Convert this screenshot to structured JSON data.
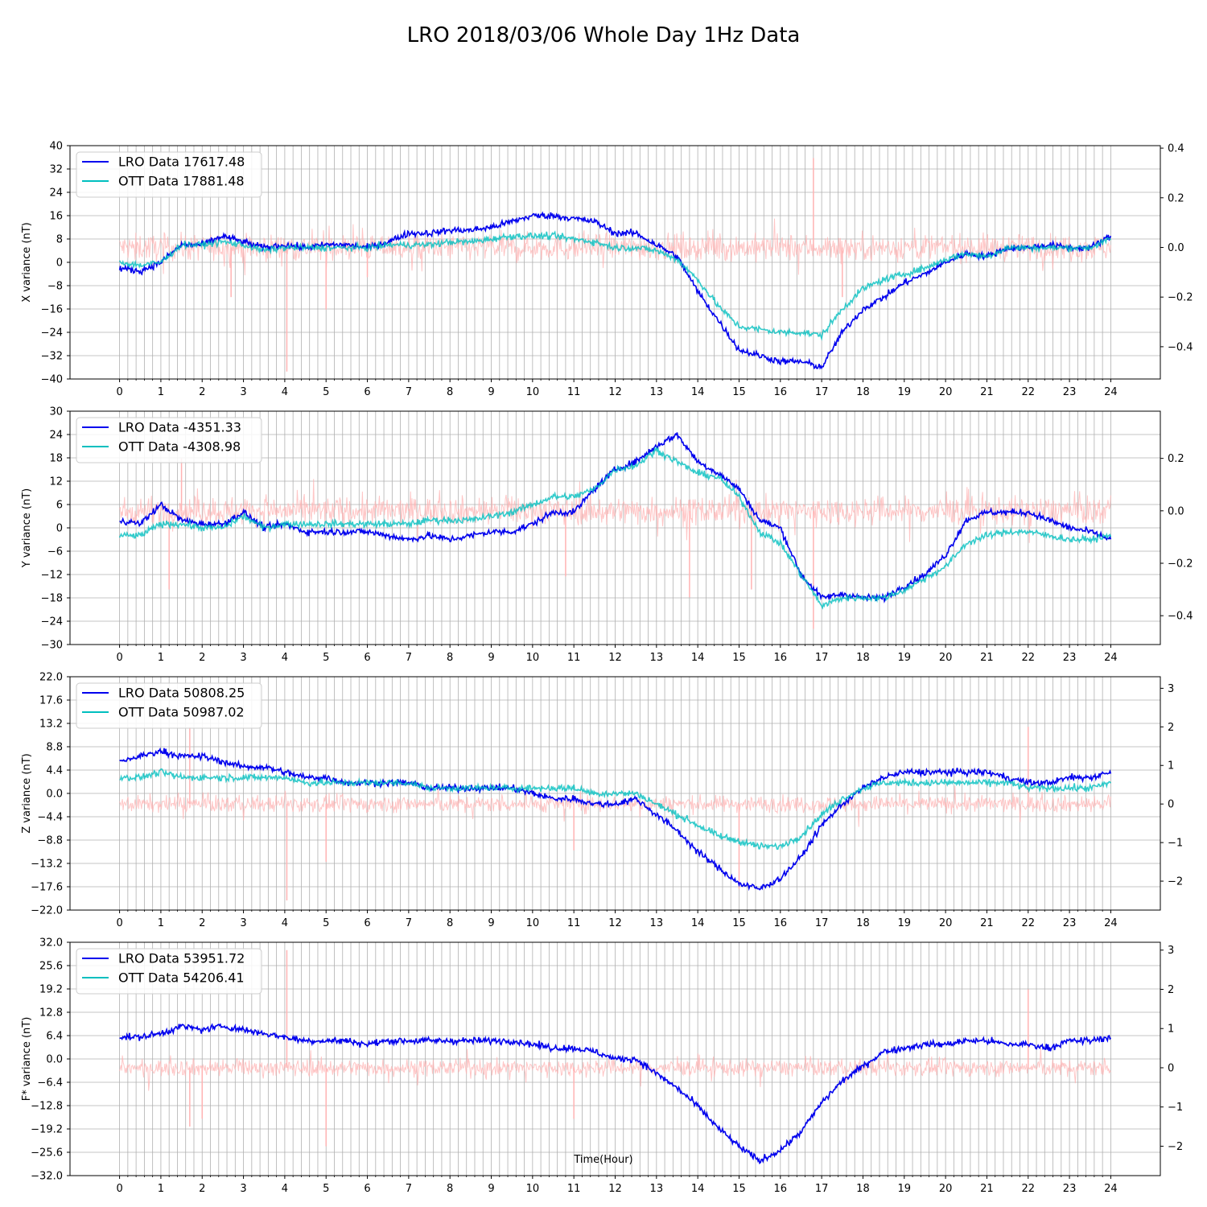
{
  "figure": {
    "title": "LRO 2018/03/06 Whole Day 1Hz Data"
  },
  "colors": {
    "lro": "#0000ee",
    "ott": "#00bfbf",
    "diff": "#ffb3b3",
    "grid": "#b0b0b0"
  },
  "chart_data": [
    {
      "type": "line",
      "ylabel": "X variance (nT)",
      "ylim": [
        -40,
        40
      ],
      "yticks": [
        -40,
        -32,
        -24,
        -16,
        -8,
        0,
        8,
        16,
        24,
        32,
        40
      ],
      "y2lim": [
        -0.53,
        0.41
      ],
      "y2ticks": [
        -0.4,
        -0.2,
        0.0,
        0.2,
        0.4
      ],
      "xlim": [
        -1.2,
        25.2
      ],
      "xticks": [
        0,
        1,
        2,
        3,
        4,
        5,
        6,
        7,
        8,
        9,
        10,
        11,
        12,
        13,
        14,
        15,
        16,
        17,
        18,
        19,
        20,
        21,
        22,
        23,
        24
      ],
      "grid": true,
      "legend_position": "top-left",
      "series": [
        {
          "name": "LRO Data 17617.48",
          "key": "lro",
          "x": [
            0,
            0.5,
            1,
            1.5,
            2,
            2.5,
            3,
            3.5,
            4,
            4.5,
            5,
            5.5,
            6,
            6.5,
            7,
            7.5,
            8,
            8.5,
            9,
            9.5,
            10,
            10.5,
            11,
            11.5,
            12,
            12.5,
            13,
            13.5,
            14,
            14.5,
            15,
            15.5,
            16,
            16.5,
            17,
            17.5,
            18,
            18.5,
            19,
            19.5,
            20,
            20.5,
            21,
            21.5,
            22,
            22.5,
            23,
            23.5,
            24
          ],
          "values": [
            -2,
            -3,
            0,
            6,
            6,
            9,
            7,
            5,
            6,
            5,
            6,
            6,
            5,
            7,
            10,
            10,
            11,
            11,
            12,
            14,
            16,
            16,
            15,
            14,
            10,
            10,
            6,
            2,
            -10,
            -20,
            -30,
            -32,
            -34,
            -34,
            -36,
            -24,
            -16,
            -12,
            -7,
            -4,
            0,
            3,
            2,
            5,
            5,
            6,
            5,
            5,
            9
          ]
        },
        {
          "name": "OTT Data 17881.48",
          "key": "ott",
          "x": [
            0,
            0.5,
            1,
            1.5,
            2,
            2.5,
            3,
            3.5,
            4,
            4.5,
            5,
            5.5,
            6,
            6.5,
            7,
            7.5,
            8,
            8.5,
            9,
            9.5,
            10,
            10.5,
            11,
            11.5,
            12,
            12.5,
            13,
            13.5,
            14,
            14.5,
            15,
            15.5,
            16,
            16.5,
            17,
            17.5,
            18,
            18.5,
            19,
            19.5,
            20,
            20.5,
            21,
            21.5,
            22,
            22.5,
            23,
            23.5,
            24
          ],
          "values": [
            0,
            -1,
            0,
            6,
            6,
            7,
            6,
            4,
            5,
            5,
            5,
            5,
            5,
            6,
            6,
            6,
            7,
            7,
            8,
            9,
            9,
            9,
            8,
            7,
            5,
            5,
            4,
            1,
            -6,
            -15,
            -22,
            -23,
            -24,
            -24,
            -25,
            -16,
            -9,
            -6,
            -4,
            -2,
            1,
            3,
            2,
            5,
            5,
            5,
            5,
            5,
            8
          ]
        },
        {
          "name": "",
          "key": "diff",
          "center_x": [
            0,
            24
          ],
          "center_values": [
            0.0,
            0.0
          ],
          "noise_amplitude": 0.05,
          "spikes_x": [
            4.05,
            16.8,
            2.7,
            5.0,
            6.0,
            17.5
          ],
          "spikes_values": [
            -0.5,
            0.36,
            -0.2,
            -0.25,
            -0.12,
            -0.2
          ]
        }
      ]
    },
    {
      "type": "line",
      "ylabel": "Y variance (nT)",
      "ylim": [
        -30,
        30
      ],
      "yticks": [
        -30,
        -24,
        -18,
        -12,
        -6,
        0,
        6,
        12,
        18,
        24,
        30
      ],
      "y2lim": [
        -0.51,
        0.38
      ],
      "y2ticks": [
        -0.4,
        -0.2,
        0.0,
        0.2
      ],
      "xlim": [
        -1.2,
        25.2
      ],
      "xticks": [
        0,
        1,
        2,
        3,
        4,
        5,
        6,
        7,
        8,
        9,
        10,
        11,
        12,
        13,
        14,
        15,
        16,
        17,
        18,
        19,
        20,
        21,
        22,
        23,
        24
      ],
      "grid": true,
      "legend_position": "top-left",
      "series": [
        {
          "name": "LRO Data -4351.33",
          "key": "lro",
          "x": [
            0,
            0.5,
            1,
            1.5,
            2,
            2.5,
            3,
            3.5,
            4,
            4.5,
            5,
            5.5,
            6,
            6.5,
            7,
            7.5,
            8,
            8.5,
            9,
            9.5,
            10,
            10.5,
            11,
            11.5,
            12,
            12.5,
            13,
            13.5,
            14,
            14.5,
            15,
            15.5,
            16,
            16.5,
            17,
            17.5,
            18,
            18.5,
            19,
            19.5,
            20,
            20.5,
            21,
            21.5,
            22,
            22.5,
            23,
            23.5,
            24
          ],
          "values": [
            2,
            1,
            6,
            2,
            1,
            1,
            4,
            0,
            1,
            -1,
            -1,
            -1,
            -1,
            -2,
            -3,
            -2,
            -3,
            -2,
            -1,
            -1,
            1,
            4,
            4,
            10,
            15,
            17,
            21,
            24,
            17,
            14,
            10,
            2,
            0,
            -12,
            -18,
            -17,
            -18,
            -18,
            -15,
            -12,
            -7,
            2,
            4,
            4,
            4,
            2,
            0,
            -1,
            -3
          ]
        },
        {
          "name": "OTT Data -4308.98",
          "key": "ott",
          "x": [
            0,
            0.5,
            1,
            1.5,
            2,
            2.5,
            3,
            3.5,
            4,
            4.5,
            5,
            5.5,
            6,
            6.5,
            7,
            7.5,
            8,
            8.5,
            9,
            9.5,
            10,
            10.5,
            11,
            11.5,
            12,
            12.5,
            13,
            13.5,
            14,
            14.5,
            15,
            15.5,
            16,
            16.5,
            17,
            17.5,
            18,
            18.5,
            19,
            19.5,
            20,
            20.5,
            21,
            21.5,
            22,
            22.5,
            23,
            23.5,
            24
          ],
          "values": [
            -2,
            -2,
            1,
            1,
            0,
            0,
            3,
            0,
            1,
            1,
            1,
            1,
            1,
            1,
            1,
            2,
            2,
            2,
            3,
            4,
            6,
            8,
            8,
            10,
            15,
            16,
            20,
            17,
            14,
            13,
            8,
            -1,
            -4,
            -12,
            -20,
            -18,
            -18,
            -18,
            -16,
            -13,
            -10,
            -4,
            -2,
            -1,
            -1,
            -2,
            -3,
            -3,
            -2
          ]
        },
        {
          "name": "",
          "key": "diff",
          "center_x": [
            0,
            24
          ],
          "center_values": [
            0.0,
            0.0
          ],
          "noise_amplitude": 0.05,
          "spikes_x": [
            1.2,
            1.5,
            10.8,
            13.8,
            16.8,
            15.3
          ],
          "spikes_values": [
            -0.3,
            0.2,
            -0.25,
            -0.33,
            -0.45,
            -0.3
          ]
        }
      ]
    },
    {
      "type": "line",
      "ylabel": "Z variance (nT)",
      "ylim": [
        -22,
        22
      ],
      "yticks": [
        -22.0,
        -17.6,
        -13.2,
        -8.8,
        -4.4,
        0.0,
        4.4,
        8.8,
        13.2,
        17.6,
        22.0
      ],
      "y2lim": [
        -2.75,
        3.3
      ],
      "y2ticks": [
        -2,
        -1,
        0,
        1,
        2,
        3
      ],
      "xlim": [
        -1.2,
        25.2
      ],
      "xticks": [
        0,
        1,
        2,
        3,
        4,
        5,
        6,
        7,
        8,
        9,
        10,
        11,
        12,
        13,
        14,
        15,
        16,
        17,
        18,
        19,
        20,
        21,
        22,
        23,
        24
      ],
      "grid": true,
      "legend_position": "top-left",
      "series": [
        {
          "name": "LRO Data 50808.25",
          "key": "lro",
          "x": [
            0,
            0.5,
            1,
            1.5,
            2,
            2.5,
            3,
            3.5,
            4,
            4.5,
            5,
            5.5,
            6,
            6.5,
            7,
            7.5,
            8,
            8.5,
            9,
            9.5,
            10,
            10.5,
            11,
            11.5,
            12,
            12.5,
            13,
            13.5,
            14,
            14.5,
            15,
            15.5,
            16,
            16.5,
            17,
            17.5,
            18,
            18.5,
            19,
            19.5,
            20,
            20.5,
            21,
            21.5,
            22,
            22.5,
            23,
            23.5,
            24
          ],
          "values": [
            6,
            7,
            8,
            7,
            7,
            6,
            5,
            5,
            4,
            3,
            3,
            2,
            2,
            2,
            2,
            1,
            1,
            1,
            1,
            1,
            0,
            -1,
            -1,
            -2,
            -2,
            -1,
            -4,
            -7,
            -11,
            -14,
            -17,
            -18,
            -16,
            -12,
            -6,
            -2,
            1,
            3,
            4,
            4,
            4,
            4,
            4,
            3,
            2,
            2,
            3,
            3,
            4
          ]
        },
        {
          "name": "OTT Data 50987.02",
          "key": "ott",
          "x": [
            0,
            0.5,
            1,
            1.5,
            2,
            2.5,
            3,
            3.5,
            4,
            4.5,
            5,
            5.5,
            6,
            6.5,
            7,
            7.5,
            8,
            8.5,
            9,
            9.5,
            10,
            10.5,
            11,
            11.5,
            12,
            12.5,
            13,
            13.5,
            14,
            14.5,
            15,
            15.5,
            16,
            16.5,
            17,
            17.5,
            18,
            18.5,
            19,
            19.5,
            20,
            20.5,
            21,
            21.5,
            22,
            22.5,
            23,
            23.5,
            24
          ],
          "values": [
            3,
            3,
            4,
            3,
            3,
            3,
            3,
            3,
            3,
            2,
            2,
            2,
            2,
            2,
            2,
            1,
            1,
            1,
            1,
            1,
            1,
            1,
            1,
            0,
            0,
            0,
            -2,
            -4,
            -6,
            -8,
            -9,
            -10,
            -10,
            -8,
            -4,
            -1,
            1,
            2,
            2,
            2,
            2,
            2,
            2,
            2,
            1,
            1,
            1,
            1,
            2
          ]
        },
        {
          "name": "",
          "key": "diff",
          "center_x": [
            0,
            24
          ],
          "center_values": [
            0.0,
            0.0
          ],
          "noise_amplitude": 0.2,
          "spikes_x": [
            4.05,
            1.7,
            5.0,
            15.0,
            22.0,
            11.0
          ],
          "spikes_values": [
            -2.5,
            2.0,
            -1.5,
            -2.2,
            2.0,
            -1.2
          ]
        }
      ]
    },
    {
      "type": "line",
      "ylabel": "F* variance (nT)",
      "xlabel": "Time(Hour)",
      "ylim": [
        -32,
        32
      ],
      "yticks": [
        -32.0,
        -25.6,
        -19.2,
        -12.8,
        -6.4,
        0.0,
        6.4,
        12.8,
        19.2,
        25.6,
        32.0
      ],
      "y2lim": [
        -2.75,
        3.2
      ],
      "y2ticks": [
        -2,
        -1,
        0,
        1,
        2,
        3
      ],
      "xlim": [
        -1.2,
        25.2
      ],
      "xticks": [
        0,
        1,
        2,
        3,
        4,
        5,
        6,
        7,
        8,
        9,
        10,
        11,
        12,
        13,
        14,
        15,
        16,
        17,
        18,
        19,
        20,
        21,
        22,
        23,
        24
      ],
      "grid": true,
      "legend_position": "top-left",
      "series": [
        {
          "name": "LRO Data 53951.72",
          "key": "lro",
          "x": [
            0,
            0.5,
            1,
            1.5,
            2,
            2.5,
            3,
            3.5,
            4,
            4.5,
            5,
            5.5,
            6,
            6.5,
            7,
            7.5,
            8,
            8.5,
            9,
            9.5,
            10,
            10.5,
            11,
            11.5,
            12,
            12.5,
            13,
            13.5,
            14,
            14.5,
            15,
            15.5,
            16,
            16.5,
            17,
            17.5,
            18,
            18.5,
            19,
            19.5,
            20,
            20.5,
            21,
            21.5,
            22,
            22.5,
            23,
            23.5,
            24
          ],
          "values": [
            6,
            6,
            7,
            9,
            8,
            9,
            8,
            7,
            6,
            5,
            5,
            5,
            4,
            5,
            5,
            5,
            5,
            5,
            5,
            5,
            4,
            3,
            3,
            2,
            0,
            0,
            -4,
            -8,
            -13,
            -19,
            -24,
            -28,
            -25,
            -20,
            -12,
            -6,
            -2,
            2,
            3,
            4,
            4,
            5,
            5,
            4,
            4,
            3,
            5,
            5,
            6
          ]
        },
        {
          "name": "OTT Data 54206.41",
          "key": "ott",
          "x": [],
          "values": []
        },
        {
          "name": "",
          "key": "diff",
          "center_x": [
            0,
            24
          ],
          "center_values": [
            0.0,
            0.0
          ],
          "noise_amplitude": 0.2,
          "spikes_x": [
            4.05,
            1.7,
            2.0,
            5.0,
            11.0,
            22.0
          ],
          "spikes_values": [
            3.0,
            -1.5,
            -1.3,
            -2.0,
            -1.3,
            2.0
          ]
        }
      ]
    }
  ]
}
